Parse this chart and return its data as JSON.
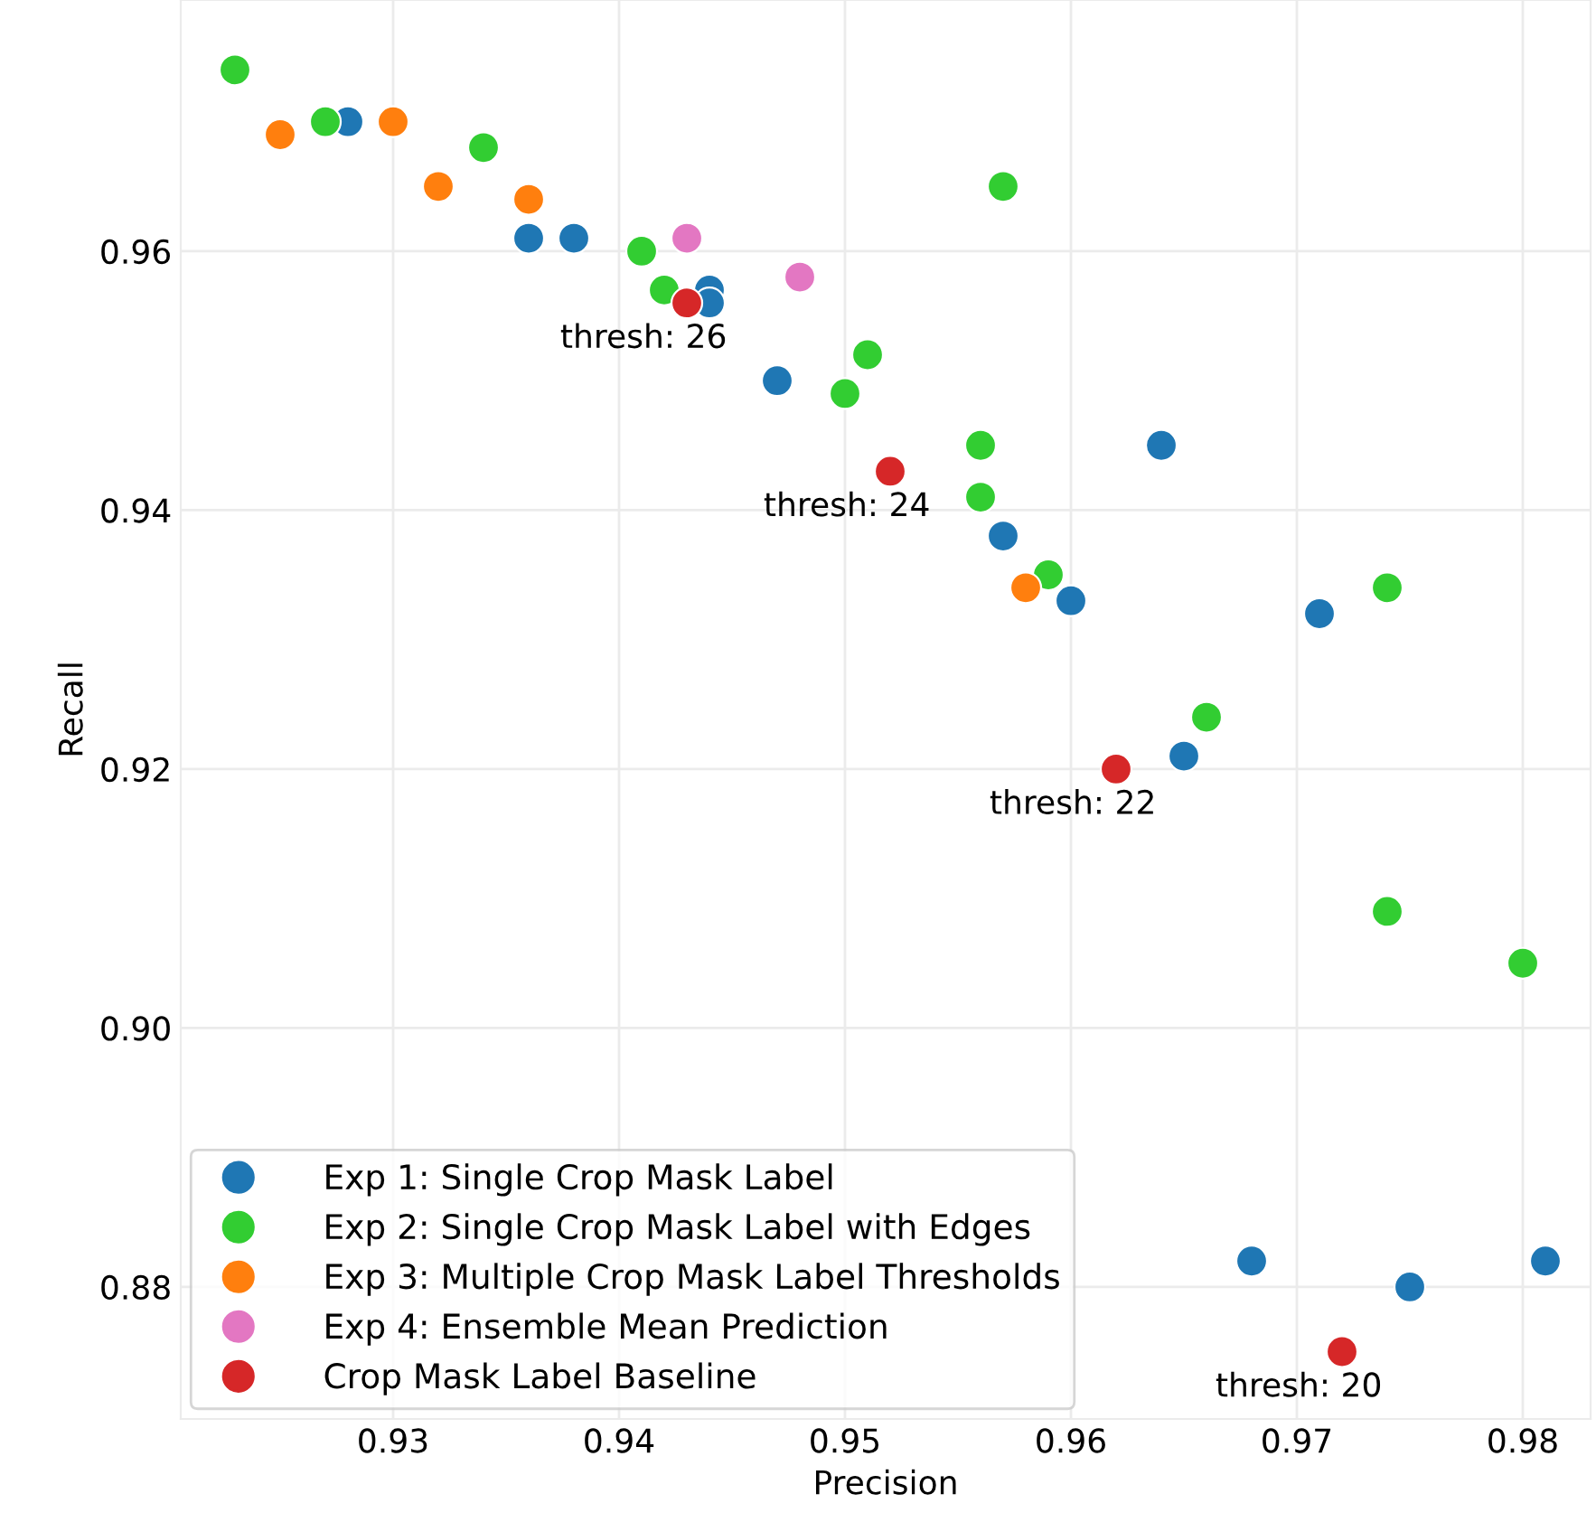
{
  "chart_data": {
    "type": "scatter",
    "xlabel": "Precision",
    "ylabel": "Recall",
    "xlim": [
      0.9206,
      0.983
    ],
    "ylim": [
      0.8698,
      0.9794
    ],
    "xticks": [
      0.93,
      0.94,
      0.95,
      0.96,
      0.97,
      0.98
    ],
    "yticks": [
      0.88,
      {
        "value": 0.9,
        "label": "0.90"
      },
      0.92,
      0.94,
      0.96
    ],
    "grid": true,
    "legend": "bottom left",
    "marker": "circle",
    "series": [
      {
        "name": "Exp 1: Single Crop Mask Label",
        "color": "#1f77b4",
        "x": [
          0.928,
          0.936,
          0.938,
          0.944,
          0.944,
          0.947,
          0.964,
          0.957,
          0.96,
          0.971,
          0.965,
          0.968,
          0.975,
          0.981
        ],
        "values": [
          0.97,
          0.961,
          0.961,
          0.957,
          0.956,
          0.95,
          0.945,
          0.938,
          0.933,
          0.932,
          0.921,
          0.882,
          0.88,
          0.882
        ]
      },
      {
        "name": "Exp 2: Single Crop Mask Label with Edges",
        "color": "#32cd32",
        "x": [
          0.923,
          0.927,
          0.934,
          0.957,
          0.941,
          0.942,
          0.951,
          0.95,
          0.956,
          0.956,
          0.959,
          0.974,
          0.966,
          0.974,
          0.98
        ],
        "values": [
          0.974,
          0.97,
          0.968,
          0.965,
          0.96,
          0.957,
          0.952,
          0.949,
          0.945,
          0.941,
          0.935,
          0.934,
          0.924,
          0.909,
          0.905
        ]
      },
      {
        "name": "Exp 3: Multiple Crop Mask Label Thresholds",
        "color": "#ff7f0e",
        "x": [
          0.925,
          0.93,
          0.932,
          0.936,
          0.958
        ],
        "values": [
          0.969,
          0.97,
          0.965,
          0.964,
          0.934
        ]
      },
      {
        "name": "Exp 4: Ensemble Mean Prediction",
        "color": "#e377c2",
        "x": [
          0.943,
          0.948
        ],
        "values": [
          0.961,
          0.958
        ]
      },
      {
        "name": "Crop Mask Label Baseline",
        "color": "#d62728",
        "x": [
          0.943,
          0.952,
          0.962,
          0.972
        ],
        "values": [
          0.956,
          0.943,
          0.92,
          0.875
        ]
      }
    ],
    "annotations": [
      {
        "text": "thresh: 26",
        "x": 0.943,
        "y": 0.956
      },
      {
        "text": "thresh: 24",
        "x": 0.952,
        "y": 0.943
      },
      {
        "text": "thresh: 22",
        "x": 0.962,
        "y": 0.92
      },
      {
        "text": "thresh: 20",
        "x": 0.972,
        "y": 0.875
      }
    ]
  }
}
